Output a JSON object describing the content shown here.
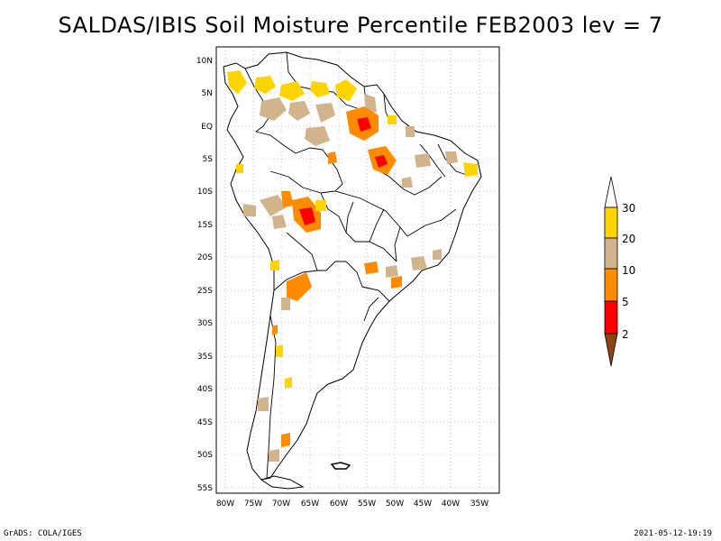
{
  "title": "SALDAS/IBIS Soil Moisture Percentile FEB2003 lev = 7",
  "footer": {
    "left": "GrADS: COLA/IGES",
    "right": "2021-05-12-19:19"
  },
  "map": {
    "lat_labels": [
      "10N",
      "5N",
      "EQ",
      "5S",
      "10S",
      "15S",
      "20S",
      "25S",
      "30S",
      "35S",
      "40S",
      "45S",
      "50S",
      "55S"
    ],
    "lon_labels": [
      "80W",
      "75W",
      "70W",
      "65W",
      "60W",
      "55W",
      "50W",
      "45W",
      "40W",
      "35W"
    ],
    "grid": "dotted"
  },
  "colorbar": {
    "labels": [
      "30",
      "20",
      "10",
      "5",
      "2"
    ],
    "colors": {
      "over": "#ffffff",
      "c30": "#ffd400",
      "c20": "#d2b48c",
      "c10": "#ff8c00",
      "c5": "#ff0000",
      "under": "#8b4513"
    }
  },
  "palette": {
    "yellow": "#ffd400",
    "tan": "#d2b48c",
    "orange": "#ff8c00",
    "red": "#ff0000"
  }
}
